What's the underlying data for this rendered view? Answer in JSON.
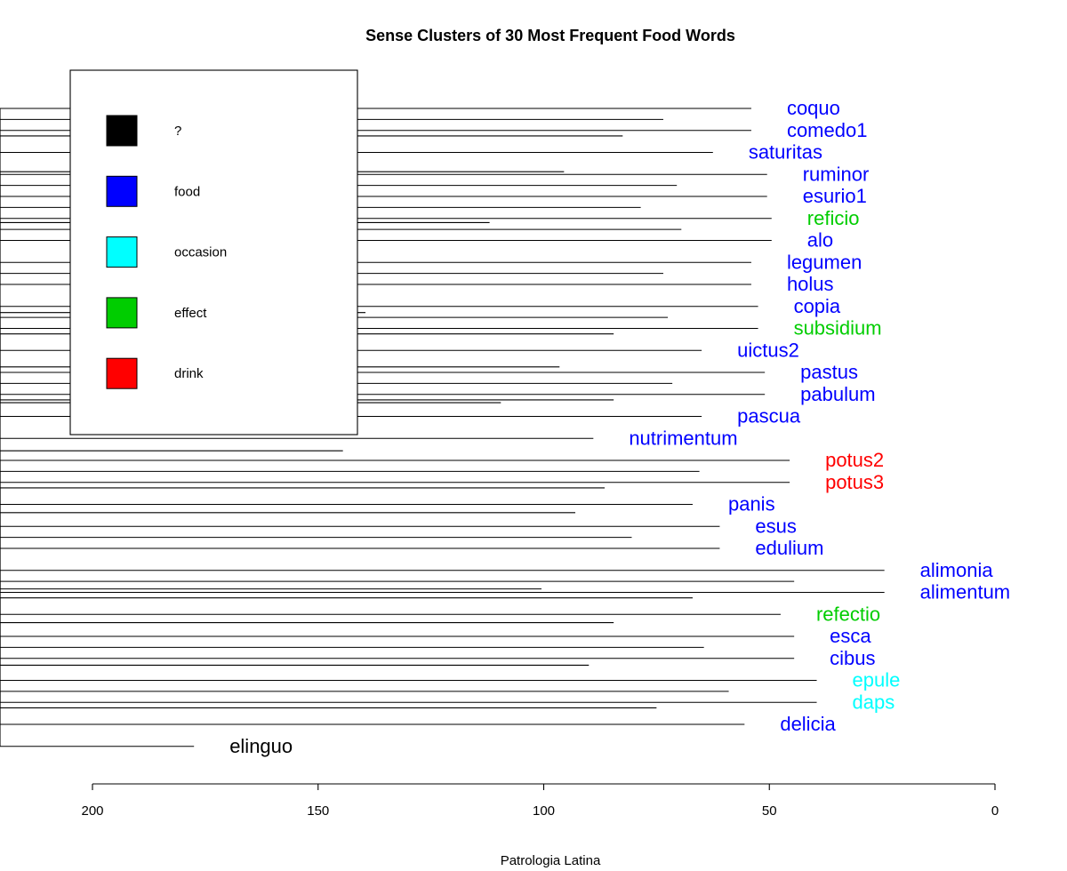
{
  "chart_data": {
    "type": "dendrogram",
    "title": "Sense Clusters of 30 Most Frequent Food Words",
    "xlabel": "Patrologia Latina",
    "ylabel": "",
    "xlim": [
      200,
      0
    ],
    "x_ticks": [
      200,
      150,
      100,
      50,
      0
    ],
    "x_tick_labels": [
      "200",
      "150",
      "100",
      "50",
      "0"
    ],
    "legend": {
      "placement": "top-left",
      "entries": [
        {
          "label": "?",
          "color": "#000000"
        },
        {
          "label": "food",
          "color": "#0000ff"
        },
        {
          "label": "occasion",
          "color": "#00ffff"
        },
        {
          "label": "effect",
          "color": "#00cd00"
        },
        {
          "label": "drink",
          "color": "#ff0000"
        }
      ]
    },
    "leaves": [
      {
        "label": "coquo",
        "sense": "food",
        "height": 54
      },
      {
        "label": "comedo1",
        "sense": "food",
        "height": 54
      },
      {
        "label": "saturitas",
        "sense": "food",
        "height": 62.5
      },
      {
        "label": "ruminor",
        "sense": "food",
        "height": 50.5
      },
      {
        "label": "esurio1",
        "sense": "food",
        "height": 50.5
      },
      {
        "label": "reficio",
        "sense": "effect",
        "height": 49.5
      },
      {
        "label": "alo",
        "sense": "food",
        "height": 49.5
      },
      {
        "label": "legumen",
        "sense": "food",
        "height": 54
      },
      {
        "label": "holus",
        "sense": "food",
        "height": 54
      },
      {
        "label": "copia",
        "sense": "food",
        "height": 52.5
      },
      {
        "label": "subsidium",
        "sense": "effect",
        "height": 52.5
      },
      {
        "label": "uictus2",
        "sense": "food",
        "height": 65
      },
      {
        "label": "pastus",
        "sense": "food",
        "height": 51
      },
      {
        "label": "pabulum",
        "sense": "food",
        "height": 51
      },
      {
        "label": "pascua",
        "sense": "food",
        "height": 65
      },
      {
        "label": "nutrimentum",
        "sense": "food",
        "height": 89
      },
      {
        "label": "potus2",
        "sense": "drink",
        "height": 45.5
      },
      {
        "label": "potus3",
        "sense": "drink",
        "height": 45.5
      },
      {
        "label": "panis",
        "sense": "food",
        "height": 67
      },
      {
        "label": "esus",
        "sense": "food",
        "height": 61
      },
      {
        "label": "edulium",
        "sense": "food",
        "height": 61
      },
      {
        "label": "alimonia",
        "sense": "food",
        "height": 24.5
      },
      {
        "label": "alimentum",
        "sense": "food",
        "height": 24.5
      },
      {
        "label": "refectio",
        "sense": "effect",
        "height": 47.5
      },
      {
        "label": "esca",
        "sense": "food",
        "height": 44.5
      },
      {
        "label": "cibus",
        "sense": "food",
        "height": 44.5
      },
      {
        "label": "epule",
        "sense": "occasion",
        "height": 39.5
      },
      {
        "label": "daps",
        "sense": "occasion",
        "height": 39.5
      },
      {
        "label": "delicia",
        "sense": "food",
        "height": 55.5
      },
      {
        "label": "elinguo",
        "sense": "?",
        "height": 177.5
      }
    ],
    "merges": [
      {
        "id": "a",
        "children": [
          "coquo",
          "comedo1"
        ],
        "height": 73.5
      },
      {
        "id": "b",
        "children": [
          "a",
          "saturitas"
        ],
        "height": 82.5
      },
      {
        "id": "c",
        "children": [
          "ruminor",
          "esurio1"
        ],
        "height": 70.5
      },
      {
        "id": "d",
        "children": [
          "reficio",
          "alo"
        ],
        "height": 69.5
      },
      {
        "id": "e",
        "children": [
          "c",
          "d"
        ],
        "height": 78.5
      },
      {
        "id": "f",
        "children": [
          "b",
          "e"
        ],
        "height": 95.5
      },
      {
        "id": "g",
        "children": [
          "legumen",
          "holus"
        ],
        "height": 73.5
      },
      {
        "id": "h",
        "children": [
          "f",
          "g"
        ],
        "height": 112
      },
      {
        "id": "i",
        "children": [
          "copia",
          "subsidium"
        ],
        "height": 72.5
      },
      {
        "id": "j",
        "children": [
          "i",
          "uictus2"
        ],
        "height": 84.5
      },
      {
        "id": "k",
        "children": [
          "pastus",
          "pabulum"
        ],
        "height": 71.5
      },
      {
        "id": "l",
        "children": [
          "k",
          "pascua"
        ],
        "height": 84.5
      },
      {
        "id": "m",
        "children": [
          "j",
          "l"
        ],
        "height": 96.5
      },
      {
        "id": "n",
        "children": [
          "m",
          "nutrimentum"
        ],
        "height": 109.5
      },
      {
        "id": "o",
        "children": [
          "h",
          "n"
        ],
        "height": 139.5
      },
      {
        "id": "p",
        "children": [
          "potus2",
          "potus3"
        ],
        "height": 65.5
      },
      {
        "id": "q",
        "children": [
          "p",
          "panis"
        ],
        "height": 86.5
      },
      {
        "id": "r",
        "children": [
          "esus",
          "edulium"
        ],
        "height": 80.5
      },
      {
        "id": "s",
        "children": [
          "q",
          "r"
        ],
        "height": 93
      },
      {
        "id": "t",
        "children": [
          "alimonia",
          "alimentum"
        ],
        "height": 44.5
      },
      {
        "id": "u",
        "children": [
          "t",
          "refectio"
        ],
        "height": 67
      },
      {
        "id": "v",
        "children": [
          "esca",
          "cibus"
        ],
        "height": 64.5
      },
      {
        "id": "w",
        "children": [
          "u",
          "v"
        ],
        "height": 84.5
      },
      {
        "id": "x",
        "children": [
          "epule",
          "daps"
        ],
        "height": 59
      },
      {
        "id": "y",
        "children": [
          "x",
          "delicia"
        ],
        "height": 75
      },
      {
        "id": "z",
        "children": [
          "w",
          "y"
        ],
        "height": 90
      },
      {
        "id": "aa",
        "children": [
          "s",
          "z"
        ],
        "height": 100.5
      },
      {
        "id": "ab",
        "children": [
          "o",
          "aa"
        ],
        "height": 144.5
      },
      {
        "id": "ac",
        "children": [
          "ab",
          "elinguo"
        ],
        "height": 197
      }
    ]
  }
}
